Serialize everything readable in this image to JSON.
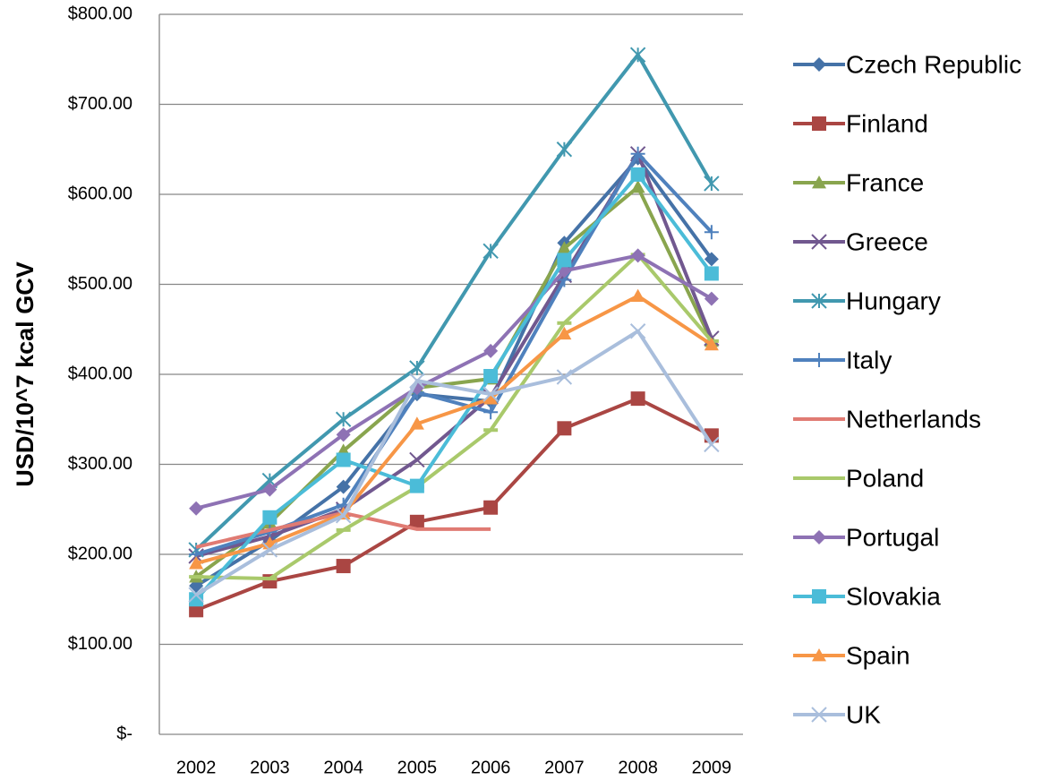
{
  "chart_data": {
    "type": "line",
    "y_axis_label": "USD/10^7 kcal GCV",
    "categories": [
      "2002",
      "2003",
      "2004",
      "2005",
      "2006",
      "2007",
      "2008",
      "2009"
    ],
    "ylim": [
      0,
      800
    ],
    "yticks": [
      {
        "value": 0,
        "label": "$-"
      },
      {
        "value": 100,
        "label": "$100.00"
      },
      {
        "value": 200,
        "label": "$200.00"
      },
      {
        "value": 300,
        "label": "$300.00"
      },
      {
        "value": 400,
        "label": "$400.00"
      },
      {
        "value": 500,
        "label": "$500.00"
      },
      {
        "value": 600,
        "label": "$600.00"
      },
      {
        "value": 700,
        "label": "$700.00"
      },
      {
        "value": 800,
        "label": "$800.00"
      }
    ],
    "grid": true,
    "legend": "right",
    "series": [
      {
        "name": "Czech Republic",
        "color": "#4572A7",
        "marker": "diamond",
        "values": [
          165,
          215,
          275,
          378,
          370,
          546,
          640,
          528
        ]
      },
      {
        "name": "Finland",
        "color": "#AA4643",
        "marker": "square",
        "values": [
          138,
          170,
          187,
          236,
          252,
          340,
          373,
          332
        ]
      },
      {
        "name": "France",
        "color": "#89A54E",
        "marker": "triangle",
        "values": [
          175,
          235,
          315,
          385,
          395,
          540,
          608,
          437
        ]
      },
      {
        "name": "Greece",
        "color": "#71588F",
        "marker": "x",
        "values": [
          198,
          220,
          250,
          305,
          375,
          510,
          645,
          440
        ]
      },
      {
        "name": "Hungary",
        "color": "#4198AF",
        "marker": "star",
        "values": [
          205,
          282,
          350,
          407,
          537,
          650,
          755,
          612
        ]
      },
      {
        "name": "Italy",
        "color": "#4F81BD",
        "marker": "plus",
        "values": [
          200,
          225,
          255,
          380,
          358,
          505,
          645,
          558
        ]
      },
      {
        "name": "Netherlands",
        "color": "#E07B73",
        "marker": "none",
        "values": [
          208,
          227,
          246,
          228,
          228,
          null,
          null,
          null
        ]
      },
      {
        "name": "Poland",
        "color": "#A9C96B",
        "marker": "dash",
        "values": [
          175,
          173,
          227,
          275,
          338,
          457,
          533,
          437
        ]
      },
      {
        "name": "Portugal",
        "color": "#8E72B4",
        "marker": "diamond",
        "values": [
          251,
          272,
          333,
          385,
          426,
          515,
          532,
          484
        ]
      },
      {
        "name": "Slovakia",
        "color": "#4BBCD8",
        "marker": "square",
        "values": [
          150,
          241,
          305,
          276,
          398,
          527,
          622,
          512
        ]
      },
      {
        "name": "Spain",
        "color": "#F79646",
        "marker": "triangle",
        "values": [
          190,
          212,
          245,
          345,
          373,
          445,
          487,
          433
        ]
      },
      {
        "name": "UK",
        "color": "#A9BEDC",
        "marker": "x",
        "values": [
          155,
          205,
          243,
          393,
          378,
          397,
          448,
          322
        ]
      }
    ]
  }
}
